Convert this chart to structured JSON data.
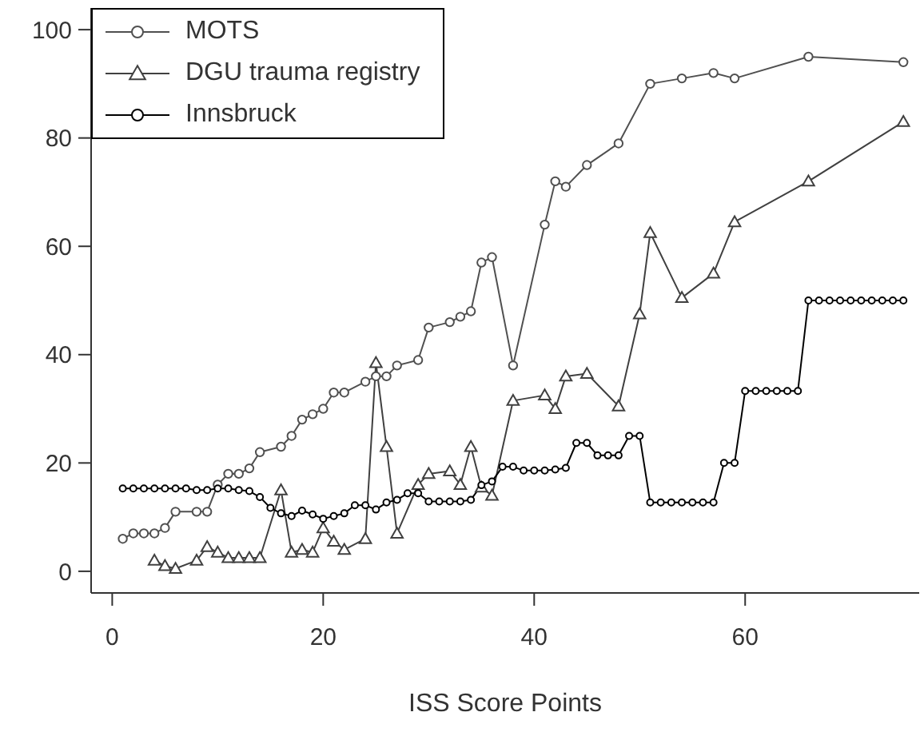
{
  "chart_data": {
    "type": "line",
    "xlabel": "ISS Score Points",
    "xlim": [
      -2,
      76.5
    ],
    "xticks": [
      0,
      20,
      40,
      60
    ],
    "ylim": [
      -4,
      104
    ],
    "yticks": [
      0,
      20,
      40,
      60,
      80,
      100
    ],
    "legend": "top left",
    "line_style": "solid",
    "series": [
      {
        "name": "MOTS",
        "color": "#505050",
        "marker": "circle",
        "x": [
          1,
          2,
          3,
          4,
          5,
          6,
          8,
          9,
          10,
          11,
          12,
          13,
          14,
          16,
          17,
          18,
          19,
          20,
          21,
          22,
          24,
          25,
          26,
          27,
          29,
          30,
          32,
          33,
          34,
          35,
          36,
          38,
          41,
          42,
          43,
          45,
          48,
          51,
          54,
          57,
          59,
          66,
          75
        ],
        "values": [
          6,
          7,
          7,
          7,
          8,
          11,
          11,
          11,
          16,
          18,
          18,
          19,
          22,
          23,
          25,
          28,
          29,
          30,
          33,
          33,
          35,
          36,
          36,
          38,
          39,
          45,
          46,
          47,
          48,
          57,
          58,
          38,
          64,
          72,
          71,
          75,
          79,
          90,
          91,
          92,
          91,
          95,
          94
        ]
      },
      {
        "name": "DGU trauma registry",
        "color": "#404040",
        "marker": "triangle",
        "x": [
          4,
          5,
          6,
          8,
          9,
          10,
          11,
          12,
          13,
          14,
          16,
          17,
          18,
          19,
          20,
          21,
          22,
          24,
          25,
          26,
          27,
          29,
          30,
          32,
          33,
          34,
          35,
          36,
          38,
          41,
          42,
          43,
          45,
          48,
          50,
          51,
          54,
          57,
          59,
          66,
          75
        ],
        "values": [
          2,
          1,
          0.5,
          2,
          4.5,
          3.5,
          2.5,
          2.5,
          2.5,
          2.5,
          15,
          3.5,
          4,
          3.5,
          8,
          5.5,
          4,
          6,
          38.5,
          23,
          7,
          16,
          18,
          18.5,
          16,
          23,
          15.5,
          14,
          31.5,
          32.5,
          30,
          36,
          36.5,
          30.5,
          47.5,
          62.5,
          50.5,
          55,
          64.5,
          72,
          83
        ]
      },
      {
        "name": "Innsbruck",
        "color": "#000000",
        "marker": "circle",
        "x": [
          1,
          2,
          3,
          4,
          5,
          6,
          7,
          8,
          9,
          10,
          11,
          12,
          13,
          14,
          15,
          16,
          17,
          18,
          19,
          20,
          21,
          22,
          23,
          24,
          25,
          26,
          27,
          28,
          29,
          30,
          31,
          32,
          33,
          34,
          35,
          36,
          37,
          38,
          39,
          40,
          41,
          42,
          43,
          44,
          45,
          46,
          47,
          48,
          49,
          50,
          51,
          52,
          53,
          54,
          55,
          56,
          57,
          58,
          59,
          60,
          61,
          62,
          63,
          64,
          65,
          66,
          67,
          68,
          69,
          70,
          71,
          72,
          73,
          74,
          75
        ],
        "values": [
          15.3,
          15.3,
          15.3,
          15.3,
          15.3,
          15.3,
          15.3,
          15,
          15,
          15.3,
          15.3,
          15,
          14.8,
          13.7,
          11.7,
          10.7,
          10.2,
          11.2,
          10.5,
          9.7,
          10.2,
          10.7,
          12.2,
          12.2,
          11.4,
          12.7,
          13.2,
          14.4,
          14.4,
          12.9,
          12.9,
          12.9,
          12.9,
          13.2,
          15.9,
          16.6,
          19.3,
          19.3,
          18.6,
          18.6,
          18.6,
          18.8,
          19.1,
          23.7,
          23.7,
          21.4,
          21.4,
          21.4,
          25,
          25,
          12.7,
          12.7,
          12.7,
          12.7,
          12.7,
          12.7,
          12.7,
          20,
          20,
          33.3,
          33.3,
          33.3,
          33.3,
          33.3,
          33.3,
          50,
          50,
          50,
          50,
          50,
          50,
          50,
          50,
          50,
          50
        ]
      }
    ]
  }
}
